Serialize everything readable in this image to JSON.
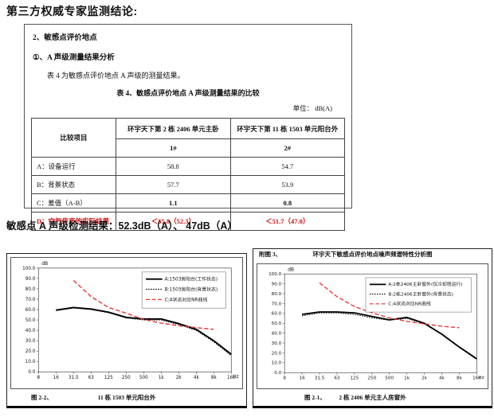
{
  "page": {
    "title": "第三方权威专家监测结论:"
  },
  "report_box": {
    "section_line": "2、敏感点评价地点",
    "subsection_line": "①、A 声级测量结果分析",
    "intro_line": "表 4 为敏感点评价地点 A 声级的测量结果。",
    "table_caption": "表 4、敏感点评价地点 A 声级测量结果的比较",
    "unit_label": "单位：  dB(A)",
    "table": {
      "corner_header": "比较项目",
      "col_groups": [
        "环宇天下第 2 栋 2406 单元主卧",
        "环宇天下第 11 栋 1503 单元阳台外"
      ],
      "sub_headers": [
        "1#",
        "2#"
      ],
      "rows": [
        {
          "label": "A：设备运行",
          "v1": "58.8",
          "v2": "54.7"
        },
        {
          "label": "B：背景状态",
          "v1": "57.7",
          "v2": "53.9"
        },
        {
          "label": "C：差值（A-B）",
          "v1": "1.1",
          "v2": "0.8"
        },
        {
          "label": "D：空气传声的实际结果",
          "v1": "＜55.8（52.3）",
          "v2": "＜51.7（47.0）"
        }
      ]
    }
  },
  "result_line": "敏感点 A 声级检测结果：52.3dB（A）、 47dB（A）",
  "colors": {
    "highlight_red": "#cc1111",
    "nr_curve_red": "#e63333"
  },
  "chart_data": [
    {
      "type": "line",
      "figure_no": "图 2-2、",
      "caption": "11 栋 1503 单元阳台外",
      "ylabel": "dB",
      "xlabel": "Hz",
      "ylim": [
        0,
        100
      ],
      "ytick_step": 10,
      "grid": false,
      "legend_position": "top-right",
      "categories": [
        "8",
        "16",
        "31.5",
        "63",
        "125",
        "250",
        "500",
        "1k",
        "2k",
        "4k",
        "8k",
        "16k"
      ],
      "series": [
        {
          "name": "A:1503房阳台(工作状态)",
          "line": "solid",
          "color": "#000000",
          "values": [
            null,
            59.5,
            62,
            60.5,
            57.5,
            52.5,
            51,
            51,
            46.5,
            41,
            30,
            17
          ]
        },
        {
          "name": "B:1503房阳台(背景状态)",
          "line": "dotted",
          "color": "#000000",
          "values": [
            null,
            59,
            61.5,
            60,
            57,
            52,
            50,
            50,
            45.5,
            40,
            29,
            15.5
          ]
        },
        {
          "name": "C:A状态对应NR曲线",
          "line": "dashed",
          "color": "#e63333",
          "values": [
            null,
            null,
            88,
            72.5,
            62,
            56.5,
            50.5,
            47,
            44.5,
            42.5,
            41,
            null
          ]
        }
      ]
    },
    {
      "type": "line",
      "header_no": "附图 3、",
      "header_title": "环宇天下敏感点评价地点噪声频谱特性分析图",
      "figure_no": "图 2-1、",
      "caption": "2 栋 2406 单元主人房窗外",
      "ylabel": "dB",
      "xlabel": "Hz",
      "ylim": [
        0,
        100
      ],
      "ytick_step": 10,
      "grid": false,
      "legend_position": "top-right",
      "categories": [
        "8",
        "16",
        "31.5",
        "63",
        "125",
        "250",
        "500",
        "1k",
        "2k",
        "4k",
        "8k",
        "16k"
      ],
      "series": [
        {
          "name": "A:2栋2406主卧窗外(仅冷却塔运行)",
          "line": "solid",
          "color": "#000000",
          "values": [
            null,
            59,
            61.5,
            61.5,
            60.5,
            57,
            53.5,
            56,
            50,
            39,
            26,
            14
          ]
        },
        {
          "name": "B:2栋2406主卧窗外(背景状态)",
          "line": "dotted",
          "color": "#000000",
          "values": [
            null,
            57.5,
            60.5,
            60.5,
            59,
            55.5,
            53,
            55,
            49.5,
            38.5,
            25.5,
            13.5
          ]
        },
        {
          "name": "C:A状态对应NR曲线",
          "line": "dashed",
          "color": "#e63333",
          "values": [
            null,
            null,
            91,
            77,
            67,
            60.5,
            55.5,
            52,
            49.5,
            47,
            45.5,
            null
          ]
        }
      ]
    }
  ]
}
